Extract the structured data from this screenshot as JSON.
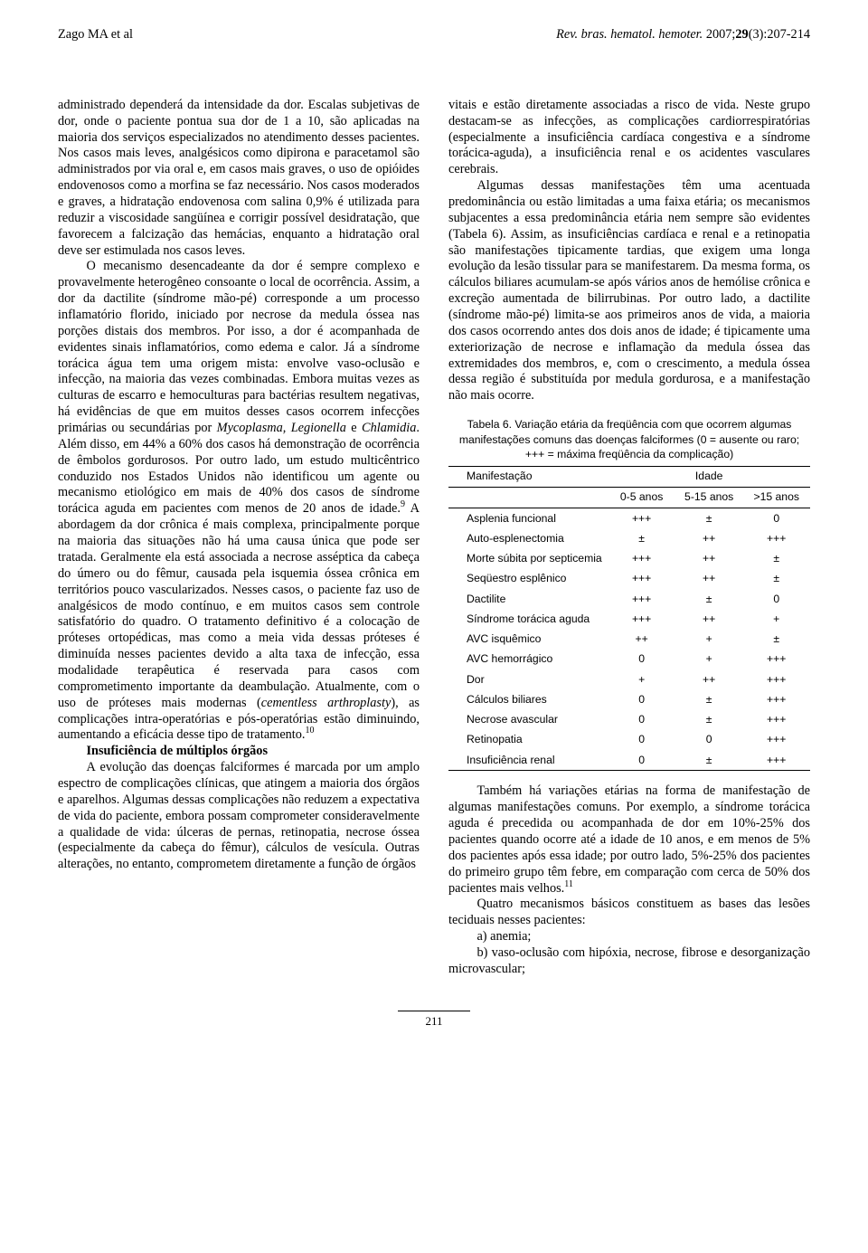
{
  "header": {
    "left": "Zago MA et al",
    "right_journal": "Rev. bras. hematol. hemoter. ",
    "right_cite": "2007;",
    "right_vol": "29",
    "right_issue": "(3):207-214"
  },
  "left_column": {
    "p1_a": "administrado dependerá da intensidade da dor. Escalas subjetivas de dor, onde o paciente pontua sua dor de 1 a 10, são aplicadas na maioria dos serviços especializados no atendimento desses pacientes. Nos casos mais leves, analgésicos como dipirona e paracetamol são administrados por via oral e, em casos mais graves, o uso de opióides endovenosos como a morfina se faz necessário. Nos casos moderados e graves, a hidratação endovenosa com salina 0,9% é utilizada para reduzir a viscosidade sangüínea e corrigir possível desidratação, que favorecem a falcização das hemácias, enquanto a hidratação oral deve ser estimulada nos casos leves.",
    "p2_a": "O mecanismo desencadeante da dor é sempre complexo e provavelmente heterogêneo consoante o local de ocorrência. Assim, a dor da dactilite (síndrome mão-pé) corresponde a um processo inflamatório florido, iniciado por necrose da medula óssea nas porções distais dos membros. Por isso, a dor é acompanhada de evidentes sinais inflamatórios, como edema e calor. Já a síndrome torácica água tem uma origem mista: envolve vaso-oclusão e infecção, na maioria das vezes combinadas. Embora muitas vezes as culturas de escarro e hemoculturas para bactérias resultem negativas, há evidências de que em muitos desses casos ocorrem infecções primárias ou secundárias por ",
    "p2_italic1": "Mycoplasma, Legionella",
    "p2_b": " e ",
    "p2_italic2": "Chlamidia",
    "p2_c": ". Além disso, em 44% a 60% dos casos há demonstração de ocorrência de êmbolos gordurosos. Por outro lado, um estudo multicêntrico conduzido nos Estados Unidos não identificou um agente ou mecanismo etiológico em mais de 40% dos casos de síndrome torácica aguda em pacientes com menos de 20 anos de idade.",
    "p2_sup1": "9",
    "p2_d": " A abordagem da dor crônica é mais complexa, principalmente porque na maioria das situações não há uma causa única que pode ser tratada. Geralmente ela está associada a necrose asséptica da cabeça do úmero ou do fêmur, causada pela isquemia óssea crônica em territórios pouco vascularizados. Nesses casos, o paciente faz uso de analgésicos de modo contínuo, e em muitos casos sem controle satisfatório do quadro. O tratamento definitivo é a colocação de próteses ortopédicas, mas como a meia vida dessas próteses é diminuída nesses pacientes devido a alta taxa de infecção, essa modalidade terapêutica é reservada para casos com comprometimento importante da deambulação. Atualmente, com o uso de próteses mais modernas (",
    "p2_italic3": "cementless arthroplasty",
    "p2_e": "), as complicações intra-operatórias e pós-operatórias estão diminuindo, aumentando a eficácia desse tipo de tratamento.",
    "p2_sup2": "10",
    "section_title": "Insuficiência de múltiplos órgãos",
    "p3": "A evolução das doenças falciformes é marcada por um amplo espectro de complicações clínicas, que atingem a maioria dos órgãos e aparelhos. Algumas dessas complicações não reduzem a expectativa de vida do paciente, embora possam comprometer consideravelmente a qualidade de vida: úlceras de pernas, retinopatia, necrose óssea (especialmente da cabeça do fêmur), cálculos de vesícula. Outras alterações, no entanto, comprometem diretamente a função de órgãos"
  },
  "right_column": {
    "p1": "vitais e estão diretamente associadas a risco de vida. Neste grupo destacam-se as infecções, as complicações cardiorrespiratórias (especialmente a insuficiência cardíaca congestiva e a síndrome torácica-aguda), a insuficiência renal e os acidentes vasculares cerebrais.",
    "p2": "Algumas dessas manifestações têm uma acentuada predominância ou estão limitadas a uma faixa etária; os mecanismos subjacentes a essa predominância etária nem sempre são evidentes (Tabela 6). Assim, as insuficiências cardíaca e renal e a retinopatia são manifestações tipicamente tardias, que exigem uma longa evolução da lesão tissular para se manifestarem. Da mesma forma, os cálculos biliares acumulam-se após vários anos de hemólise crônica e excreção aumentada de bilirrubinas. Por outro lado, a dactilite (síndrome mão-pé) limita-se aos primeiros anos de vida, a maioria dos casos ocorrendo antes dos dois anos de idade; é tipicamente uma exteriorização de necrose e inflamação da medula óssea das extremidades dos membros, e, com o crescimento, a medula óssea dessa região é substituída por medula gordurosa, e a manifestação não mais ocorre.",
    "p3_a": "Também há variações etárias na forma de manifestação de algumas manifestações comuns. Por exemplo, a síndrome torácica aguda é precedida ou acompanhada de dor em 10%-25% dos pacientes quando ocorre até a idade de 10 anos, e em menos de 5% dos pacientes após essa idade; por outro lado, 5%-25% dos pacientes do primeiro grupo têm febre, em comparação com cerca de 50% dos pacientes mais velhos.",
    "p3_sup": "11",
    "p4": "Quatro mecanismos básicos constituem as bases das lesões teciduais nesses pacientes:",
    "mech_a": "a) anemia;",
    "mech_b": "b) vaso-oclusão com hipóxia, necrose, fibrose e desorganização microvascular;"
  },
  "table6": {
    "caption": "Tabela 6. Variação etária da freqüência com que ocorrem algumas manifestações comuns das doenças falciformes (0 = ausente ou raro; +++ = máxima freqüência da complicação)",
    "header_manifest": "Manifestação",
    "header_idade": "Idade",
    "age_cols": [
      "0-5 anos",
      "5-15 anos",
      ">15 anos"
    ],
    "rows": [
      {
        "label": "Asplenia funcional",
        "v": [
          "+++",
          "±",
          "0"
        ]
      },
      {
        "label": "Auto-esplenectomia",
        "v": [
          "±",
          "++",
          "+++"
        ]
      },
      {
        "label": "Morte súbita por septicemia",
        "v": [
          "+++",
          "++",
          "±"
        ]
      },
      {
        "label": "Seqüestro esplênico",
        "v": [
          "+++",
          "++",
          "±"
        ]
      },
      {
        "label": "Dactilite",
        "v": [
          "+++",
          "±",
          "0"
        ]
      },
      {
        "label": "Síndrome torácica aguda",
        "v": [
          "+++",
          "++",
          "+"
        ]
      },
      {
        "label": "AVC isquêmico",
        "v": [
          "++",
          "+",
          "±"
        ]
      },
      {
        "label": "AVC hemorrágico",
        "v": [
          "0",
          "+",
          "+++"
        ]
      },
      {
        "label": "Dor",
        "v": [
          "+",
          "++",
          "+++"
        ]
      },
      {
        "label": "Cálculos biliares",
        "v": [
          "0",
          "±",
          "+++"
        ]
      },
      {
        "label": "Necrose avascular",
        "v": [
          "0",
          "±",
          "+++"
        ]
      },
      {
        "label": "Retinopatia",
        "v": [
          "0",
          "0",
          "+++"
        ]
      },
      {
        "label": "Insuficiência renal",
        "v": [
          "0",
          "±",
          "+++"
        ]
      }
    ],
    "col_widths": [
      "44%",
      "18.6%",
      "18.6%",
      "18.6%"
    ],
    "fontsize": 12.2
  },
  "page_number": "211"
}
